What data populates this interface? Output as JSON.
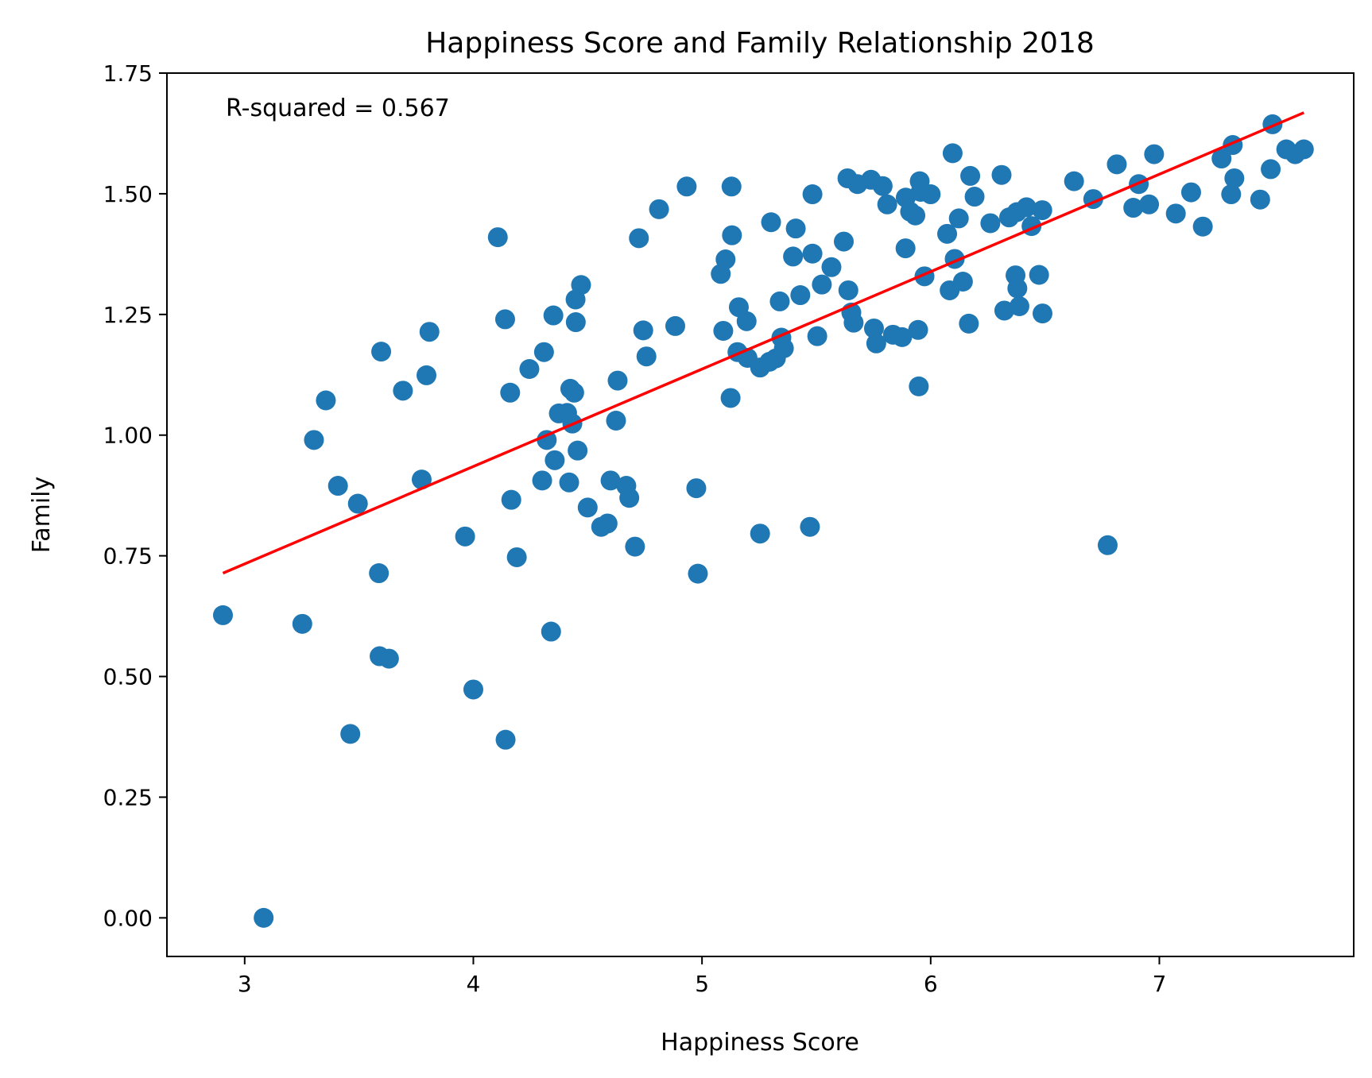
{
  "chart_data": {
    "type": "scatter",
    "title": "Happiness Score and Family Relationship 2018",
    "xlabel": "Happiness Score",
    "ylabel": "Family",
    "xlim": [
      2.66,
      7.85
    ],
    "ylim": [
      -0.08,
      1.75
    ],
    "xticks": [
      3,
      4,
      5,
      6,
      7
    ],
    "yticks": [
      0.0,
      0.25,
      0.5,
      0.75,
      1.0,
      1.25,
      1.5,
      1.75
    ],
    "xtick_labels": [
      "3",
      "4",
      "5",
      "6",
      "7"
    ],
    "ytick_labels": [
      "0.00",
      "0.25",
      "0.50",
      "0.75",
      "1.00",
      "1.25",
      "1.50",
      "1.75"
    ],
    "grid": false,
    "annotation": "R-squared = 0.567",
    "colors": {
      "points": "#1f77b4",
      "regression_line": "#ff0000"
    },
    "regression_line": {
      "x": [
        2.905,
        7.632
      ],
      "y": [
        0.714,
        1.668
      ]
    },
    "points": [
      [
        2.905,
        0.627
      ],
      [
        3.083,
        0.0
      ],
      [
        3.252,
        0.609
      ],
      [
        3.303,
        0.99
      ],
      [
        3.355,
        1.072
      ],
      [
        3.408,
        0.895
      ],
      [
        3.462,
        0.381
      ],
      [
        3.495,
        0.858
      ],
      [
        3.587,
        0.714
      ],
      [
        3.59,
        0.542
      ],
      [
        3.597,
        1.173
      ],
      [
        3.631,
        0.537
      ],
      [
        3.692,
        1.092
      ],
      [
        3.774,
        0.908
      ],
      [
        3.795,
        1.124
      ],
      [
        3.808,
        1.214
      ],
      [
        3.964,
        0.79
      ],
      [
        4.0,
        0.473
      ],
      [
        4.107,
        1.41
      ],
      [
        4.139,
        1.24
      ],
      [
        4.141,
        0.369
      ],
      [
        4.161,
        1.088
      ],
      [
        4.166,
        0.866
      ],
      [
        4.19,
        0.747
      ],
      [
        4.245,
        1.137
      ],
      [
        4.301,
        0.906
      ],
      [
        4.309,
        1.172
      ],
      [
        4.321,
        0.99
      ],
      [
        4.34,
        0.593
      ],
      [
        4.35,
        1.248
      ],
      [
        4.356,
        0.948
      ],
      [
        4.374,
        1.045
      ],
      [
        4.41,
        1.046
      ],
      [
        4.419,
        0.902
      ],
      [
        4.424,
        1.096
      ],
      [
        4.433,
        1.024
      ],
      [
        4.441,
        1.088
      ],
      [
        4.447,
        1.281
      ],
      [
        4.448,
        1.234
      ],
      [
        4.456,
        0.968
      ],
      [
        4.471,
        1.311
      ],
      [
        4.5,
        0.85
      ],
      [
        4.559,
        0.81
      ],
      [
        4.587,
        0.817
      ],
      [
        4.6,
        0.906
      ],
      [
        4.624,
        1.03
      ],
      [
        4.631,
        1.113
      ],
      [
        4.669,
        0.895
      ],
      [
        4.682,
        0.87
      ],
      [
        4.707,
        0.769
      ],
      [
        4.724,
        1.408
      ],
      [
        4.743,
        1.217
      ],
      [
        4.757,
        1.163
      ],
      [
        4.812,
        1.468
      ],
      [
        4.883,
        1.226
      ],
      [
        4.933,
        1.515
      ],
      [
        4.975,
        0.89
      ],
      [
        4.982,
        0.713
      ],
      [
        5.082,
        1.334
      ],
      [
        5.093,
        1.216
      ],
      [
        5.103,
        1.364
      ],
      [
        5.125,
        1.077
      ],
      [
        5.129,
        1.515
      ],
      [
        5.131,
        1.414
      ],
      [
        5.155,
        1.172
      ],
      [
        5.161,
        1.265
      ],
      [
        5.195,
        1.236
      ],
      [
        5.199,
        1.16
      ],
      [
        5.254,
        1.14
      ],
      [
        5.254,
        0.796
      ],
      [
        5.295,
        1.152
      ],
      [
        5.302,
        1.441
      ],
      [
        5.323,
        1.159
      ],
      [
        5.34,
        1.277
      ],
      [
        5.347,
        1.202
      ],
      [
        5.358,
        1.18
      ],
      [
        5.398,
        1.37
      ],
      [
        5.41,
        1.428
      ],
      [
        5.43,
        1.29
      ],
      [
        5.472,
        0.81
      ],
      [
        5.483,
        1.376
      ],
      [
        5.483,
        1.499
      ],
      [
        5.504,
        1.205
      ],
      [
        5.524,
        1.312
      ],
      [
        5.566,
        1.348
      ],
      [
        5.62,
        1.401
      ],
      [
        5.636,
        1.532
      ],
      [
        5.64,
        1.3
      ],
      [
        5.653,
        1.254
      ],
      [
        5.663,
        1.233
      ],
      [
        5.68,
        1.52
      ],
      [
        5.739,
        1.529
      ],
      [
        5.752,
        1.221
      ],
      [
        5.762,
        1.19
      ],
      [
        5.79,
        1.516
      ],
      [
        5.81,
        1.478
      ],
      [
        5.835,
        1.208
      ],
      [
        5.875,
        1.203
      ],
      [
        5.89,
        1.387
      ],
      [
        5.891,
        1.492
      ],
      [
        5.91,
        1.463
      ],
      [
        5.933,
        1.455
      ],
      [
        5.945,
        1.218
      ],
      [
        5.948,
        1.101
      ],
      [
        5.952,
        1.526
      ],
      [
        5.956,
        1.504
      ],
      [
        5.973,
        1.329
      ],
      [
        6.0,
        1.499
      ],
      [
        6.072,
        1.417
      ],
      [
        6.083,
        1.3
      ],
      [
        6.096,
        1.584
      ],
      [
        6.105,
        1.365
      ],
      [
        6.123,
        1.449
      ],
      [
        6.141,
        1.318
      ],
      [
        6.167,
        1.231
      ],
      [
        6.173,
        1.537
      ],
      [
        6.192,
        1.494
      ],
      [
        6.261,
        1.439
      ],
      [
        6.31,
        1.539
      ],
      [
        6.322,
        1.258
      ],
      [
        6.343,
        1.451
      ],
      [
        6.371,
        1.331
      ],
      [
        6.377,
        1.462
      ],
      [
        6.379,
        1.304
      ],
      [
        6.388,
        1.267
      ],
      [
        6.419,
        1.472
      ],
      [
        6.441,
        1.433
      ],
      [
        6.474,
        1.332
      ],
      [
        6.488,
        1.466
      ],
      [
        6.489,
        1.252
      ],
      [
        6.627,
        1.526
      ],
      [
        6.711,
        1.489
      ],
      [
        6.774,
        0.772
      ],
      [
        6.814,
        1.561
      ],
      [
        6.886,
        1.471
      ],
      [
        6.91,
        1.52
      ],
      [
        6.955,
        1.478
      ],
      [
        6.977,
        1.582
      ],
      [
        7.072,
        1.459
      ],
      [
        7.139,
        1.503
      ],
      [
        7.19,
        1.432
      ],
      [
        7.272,
        1.573
      ],
      [
        7.314,
        1.499
      ],
      [
        7.321,
        1.601
      ],
      [
        7.328,
        1.532
      ],
      [
        7.441,
        1.488
      ],
      [
        7.487,
        1.551
      ],
      [
        7.495,
        1.644
      ],
      [
        7.555,
        1.592
      ],
      [
        7.594,
        1.582
      ],
      [
        7.632,
        1.592
      ]
    ]
  }
}
